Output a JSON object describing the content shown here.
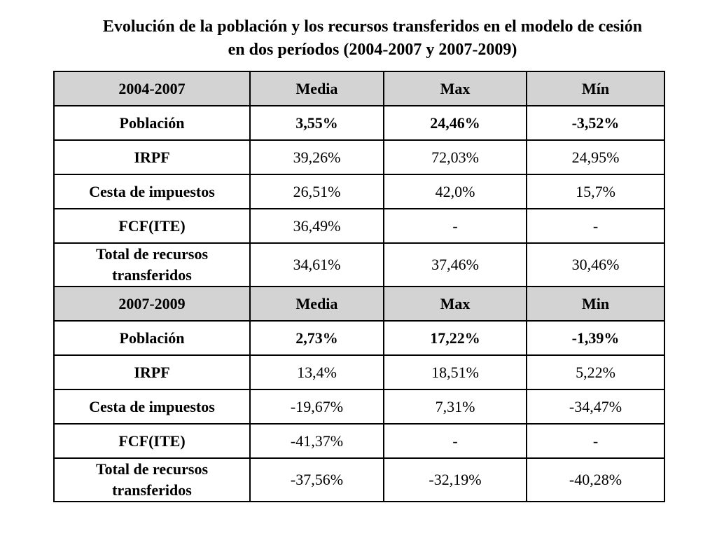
{
  "title": {
    "line1": "Evolución de la población y los recursos transferidos en el modelo de cesión",
    "line2": "en dos períodos (2004-2007 y 2007-2009)"
  },
  "section1": {
    "header": [
      "2004-2007",
      "Media",
      "Max",
      "Mín"
    ],
    "rows": [
      {
        "label": "Población",
        "values": [
          "3,55%",
          "24,46%",
          "-3,52%"
        ]
      },
      {
        "label": "IRPF",
        "values": [
          "39,26%",
          "72,03%",
          "24,95%"
        ]
      },
      {
        "label": "Cesta de impuestos",
        "values": [
          "26,51%",
          "42,0%",
          "15,7%"
        ]
      },
      {
        "label": "FCF(ITE)",
        "values": [
          "36,49%",
          "-",
          "-"
        ]
      },
      {
        "label_line1": "Total de recursos",
        "label_line2": "transferidos",
        "values": [
          "34,61%",
          "37,46%",
          "30,46%"
        ]
      }
    ]
  },
  "section2": {
    "header": [
      "2007-2009",
      "Media",
      "Max",
      "Min"
    ],
    "rows": [
      {
        "label": "Población",
        "values": [
          "2,73%",
          "17,22%",
          "-1,39%"
        ]
      },
      {
        "label": "IRPF",
        "values": [
          "13,4%",
          "18,51%",
          "5,22%"
        ]
      },
      {
        "label": "Cesta de impuestos",
        "values": [
          "-19,67%",
          "7,31%",
          "-34,47%"
        ]
      },
      {
        "label": "FCF(ITE)",
        "values": [
          "-41,37%",
          "-",
          "-"
        ]
      },
      {
        "label_line1": "Total de recursos",
        "label_line2": "transferidos",
        "values": [
          "-37,56%",
          "-32,19%",
          "-40,28%"
        ]
      }
    ]
  }
}
